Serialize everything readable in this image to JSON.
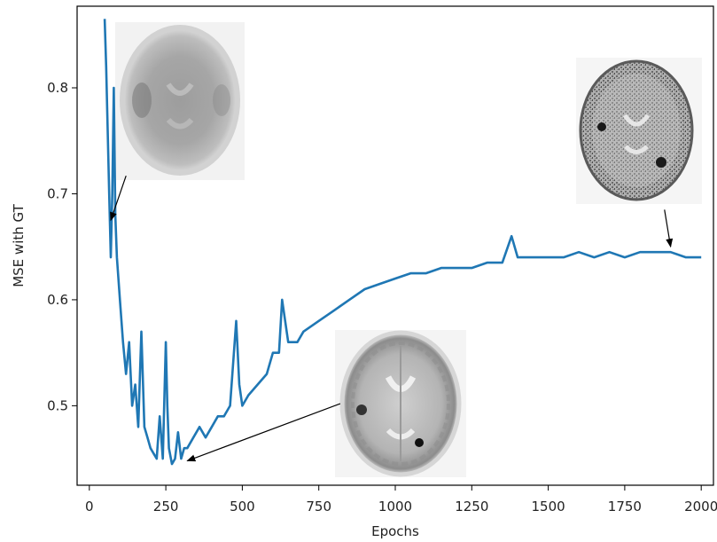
{
  "chart_data": {
    "type": "line",
    "title": "",
    "xlabel": "Epochs",
    "ylabel": "MSE with GT",
    "xlim": [
      -40,
      2040
    ],
    "ylim": [
      0.425,
      0.877
    ],
    "xticks": [
      0,
      250,
      500,
      750,
      1000,
      1250,
      1500,
      1750,
      2000
    ],
    "yticks": [
      0.5,
      0.6,
      0.7,
      0.8
    ],
    "xtick_labels": [
      "0",
      "250",
      "500",
      "750",
      "1000",
      "1250",
      "1500",
      "1750",
      "2000"
    ],
    "ytick_labels": [
      "0.5",
      "0.6",
      "0.7",
      "0.8"
    ],
    "grid": false,
    "legend": "none",
    "series": [
      {
        "color": "#1f77b4",
        "x": [
          50,
          55,
          60,
          65,
          70,
          75,
          80,
          85,
          90,
          100,
          110,
          120,
          130,
          140,
          150,
          160,
          170,
          180,
          190,
          200,
          210,
          220,
          230,
          240,
          250,
          255,
          260,
          270,
          280,
          290,
          300,
          310,
          320,
          340,
          360,
          380,
          400,
          420,
          440,
          460,
          480,
          490,
          500,
          520,
          550,
          580,
          600,
          620,
          630,
          650,
          680,
          700,
          750,
          800,
          850,
          900,
          950,
          1000,
          1050,
          1100,
          1150,
          1200,
          1250,
          1300,
          1350,
          1380,
          1400,
          1450,
          1500,
          1550,
          1600,
          1650,
          1700,
          1750,
          1800,
          1850,
          1900,
          1950,
          2000
        ],
        "y": [
          0.865,
          0.82,
          0.76,
          0.7,
          0.64,
          0.7,
          0.8,
          0.68,
          0.64,
          0.6,
          0.56,
          0.53,
          0.56,
          0.5,
          0.52,
          0.48,
          0.57,
          0.48,
          0.47,
          0.46,
          0.455,
          0.45,
          0.49,
          0.45,
          0.56,
          0.5,
          0.46,
          0.445,
          0.45,
          0.475,
          0.45,
          0.46,
          0.46,
          0.47,
          0.48,
          0.47,
          0.48,
          0.49,
          0.49,
          0.5,
          0.58,
          0.52,
          0.5,
          0.51,
          0.52,
          0.53,
          0.55,
          0.55,
          0.6,
          0.56,
          0.56,
          0.57,
          0.58,
          0.59,
          0.6,
          0.61,
          0.615,
          0.62,
          0.625,
          0.625,
          0.63,
          0.63,
          0.63,
          0.635,
          0.635,
          0.66,
          0.64,
          0.64,
          0.64,
          0.64,
          0.645,
          0.64,
          0.645,
          0.64,
          0.645,
          0.645,
          0.645,
          0.64,
          0.64
        ]
      }
    ],
    "annotations": [
      {
        "type": "arrow",
        "from": [
          120,
          0.717
        ],
        "to": [
          70,
          0.675
        ],
        "inset": "blurred-brain-scan"
      },
      {
        "type": "arrow",
        "from": [
          820,
          0.502
        ],
        "to": [
          320,
          0.448
        ],
        "inset": "clear-brain-scan"
      },
      {
        "type": "arrow",
        "from": [
          1880,
          0.685
        ],
        "to": [
          1900,
          0.65
        ],
        "inset": "noisy-brain-scan"
      }
    ]
  }
}
